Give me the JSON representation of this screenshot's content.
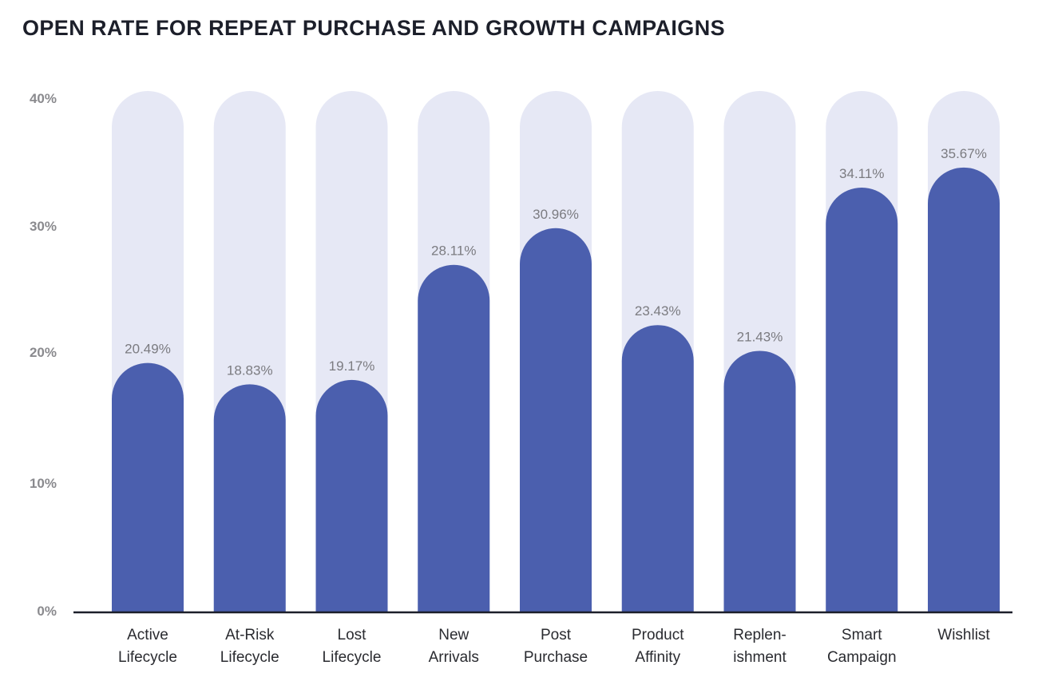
{
  "chart_data": {
    "type": "bar",
    "title": "OPEN RATE FOR REPEAT PURCHASE AND GROWTH CAMPAIGNS",
    "xlabel": "",
    "ylabel": "",
    "ylim": [
      0,
      40
    ],
    "yticks": [
      0,
      10,
      20,
      30,
      40
    ],
    "ytick_labels": [
      "0%",
      "10%",
      "20%",
      "30%",
      "40%"
    ],
    "grid": false,
    "legend": "none",
    "categories": [
      [
        "Active",
        "Lifecycle"
      ],
      [
        "At-Risk",
        "Lifecycle"
      ],
      [
        "Lost",
        "Lifecycle"
      ],
      [
        "New",
        "Arrivals"
      ],
      [
        "Post",
        "Purchase"
      ],
      [
        "Product",
        "Affinity"
      ],
      [
        "Replen-",
        "ishment"
      ],
      [
        "Smart",
        "Campaign"
      ],
      [
        "Wishlist"
      ]
    ],
    "values": [
      20.49,
      18.83,
      19.17,
      28.11,
      30.96,
      23.43,
      21.43,
      34.11,
      35.67
    ],
    "data_labels": [
      "20.49%",
      "18.83%",
      "19.17%",
      "28.11%",
      "30.96%",
      "23.43%",
      "21.43%",
      "34.11%",
      "35.67%"
    ],
    "colors": {
      "bar": "#4b5fae",
      "track": "#e6e8f5",
      "axis": "#1c1f2a",
      "tick_text": "#8a8a8e",
      "label_text": "#7b7b80"
    }
  }
}
